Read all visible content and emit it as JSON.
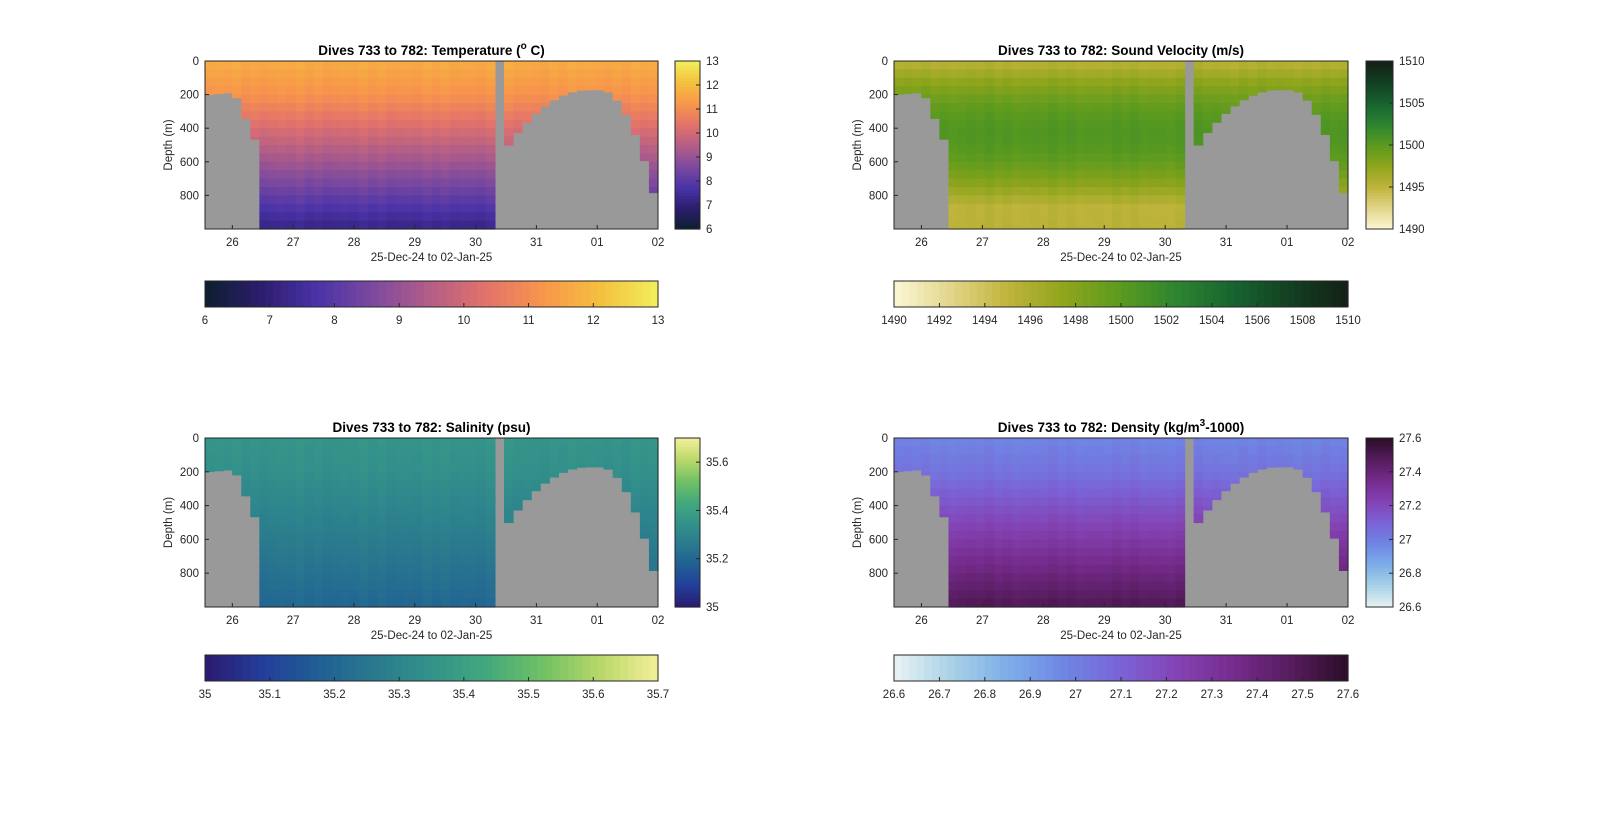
{
  "chart_data": [
    {
      "type": "heatmap",
      "title": "Dives 733 to 782: Temperature (",
      "title_sup": "o",
      "title_end": " C)",
      "xlabel": "25-Dec-24 to 02-Jan-25",
      "ylabel": "Depth (m)",
      "x_ticks": [
        "26",
        "27",
        "28",
        "29",
        "30",
        "31",
        "01",
        "02"
      ],
      "x_tick_days": [
        26,
        27,
        28,
        29,
        30,
        31,
        32,
        33
      ],
      "xlim_days": [
        25.55,
        33.0
      ],
      "y_ticks": [
        0,
        200,
        400,
        600,
        800
      ],
      "ylim": [
        0,
        1000
      ],
      "colorbar_range": [
        6,
        13
      ],
      "colorbar_side_ticks": [
        "6",
        "7",
        "8",
        "9",
        "10",
        "11",
        "12",
        "13"
      ],
      "colorbar_bottom_ticks": [
        "6",
        "7",
        "8",
        "9",
        "10",
        "11",
        "12",
        "13"
      ],
      "colormap": [
        "#0d1e2e",
        "#2d1d6e",
        "#4a33a8",
        "#7e4a9e",
        "#b45e86",
        "#e4736a",
        "#f8974a",
        "#f4c13e",
        "#f2ee5c"
      ],
      "surface_value": 11.7,
      "deep_value": 7.2,
      "no_data_color": "#999999"
    },
    {
      "type": "heatmap",
      "title": "Dives 733 to 782: Sound Velocity (m/s)",
      "xlabel": "25-Dec-24 to 02-Jan-25",
      "ylabel": "Depth (m)",
      "x_ticks": [
        "26",
        "27",
        "28",
        "29",
        "30",
        "31",
        "01",
        "02"
      ],
      "x_tick_days": [
        26,
        27,
        28,
        29,
        30,
        31,
        32,
        33
      ],
      "xlim_days": [
        25.55,
        33.0
      ],
      "y_ticks": [
        0,
        200,
        400,
        600,
        800
      ],
      "ylim": [
        0,
        1000
      ],
      "colorbar_range": [
        1490,
        1510
      ],
      "colorbar_side_ticks": [
        "1490",
        "1495",
        "1500",
        "1505",
        "1510"
      ],
      "colorbar_bottom_ticks": [
        "1490",
        "1492",
        "1494",
        "1496",
        "1498",
        "1500",
        "1502",
        "1504",
        "1506",
        "1508",
        "1510"
      ],
      "colormap": [
        "#fbf7d6",
        "#e2d68b",
        "#c0b43c",
        "#8fa51c",
        "#5a9a1f",
        "#2c8430",
        "#17632f",
        "#133f22",
        "#141f17"
      ],
      "surface_value": 1495.2,
      "deep_value": 1495.5,
      "mid_value": 1500.5,
      "no_data_color": "#999999"
    },
    {
      "type": "heatmap",
      "title": "Dives 733 to 782: Salinity (psu)",
      "xlabel": "25-Dec-24 to 02-Jan-25",
      "ylabel": "Depth (m)",
      "x_ticks": [
        "26",
        "27",
        "28",
        "29",
        "30",
        "31",
        "01",
        "02"
      ],
      "x_tick_days": [
        26,
        27,
        28,
        29,
        30,
        31,
        32,
        33
      ],
      "xlim_days": [
        25.55,
        33.0
      ],
      "y_ticks": [
        0,
        200,
        400,
        600,
        800
      ],
      "ylim": [
        0,
        1000
      ],
      "colorbar_range": [
        35,
        35.7
      ],
      "colorbar_side_ticks": [
        "35",
        "35.2",
        "35.4",
        "35.6"
      ],
      "colorbar_side_values": [
        35,
        35.2,
        35.4,
        35.6
      ],
      "colorbar_bottom_ticks": [
        "35",
        "35.1",
        "35.2",
        "35.3",
        "35.4",
        "35.5",
        "35.6",
        "35.7"
      ],
      "colormap": [
        "#2a1a6e",
        "#243d9a",
        "#1f5f94",
        "#2a7a8e",
        "#33928a",
        "#43a97c",
        "#72c264",
        "#bad86a",
        "#f4ee9a"
      ],
      "surface_value": 35.36,
      "deep_value": 35.2,
      "no_data_color": "#999999"
    },
    {
      "type": "heatmap",
      "title": "Dives 733 to 782: Density (kg/m",
      "title_sup": "3",
      "title_end": "-1000)",
      "xlabel": "25-Dec-24 to 02-Jan-25",
      "ylabel": "Depth (m)",
      "x_ticks": [
        "26",
        "27",
        "28",
        "29",
        "30",
        "31",
        "01",
        "02"
      ],
      "x_tick_days": [
        26,
        27,
        28,
        29,
        30,
        31,
        32,
        33
      ],
      "xlim_days": [
        25.55,
        33.0
      ],
      "y_ticks": [
        0,
        200,
        400,
        600,
        800
      ],
      "ylim": [
        0,
        1000
      ],
      "colorbar_range": [
        26.6,
        27.6
      ],
      "colorbar_side_ticks": [
        "26.6",
        "26.8",
        "27",
        "27.2",
        "27.4",
        "27.6"
      ],
      "colorbar_bottom_ticks": [
        "26.6",
        "26.7",
        "26.8",
        "26.9",
        "27",
        "27.1",
        "27.2",
        "27.3",
        "27.4",
        "27.5",
        "27.6"
      ],
      "colormap": [
        "#e9f3f3",
        "#a9d2e6",
        "#7eaee8",
        "#6f86e4",
        "#7a63d6",
        "#8443b4",
        "#752b8c",
        "#561c5d",
        "#2b0d27"
      ],
      "surface_value": 26.98,
      "deep_value": 27.5,
      "no_data_color": "#999999"
    }
  ]
}
